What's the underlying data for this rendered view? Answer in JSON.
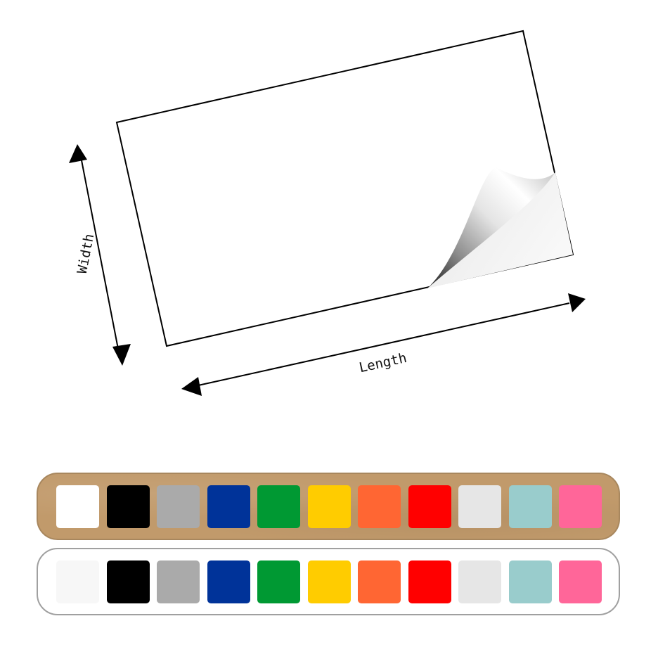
{
  "diagram": {
    "width_label": "Width",
    "length_label": "Length"
  },
  "swatch_bars": [
    {
      "id": "kraft",
      "background": "#c19a6b",
      "colors": [
        "#ffffff",
        "#000000",
        "#aaaaaa",
        "#003399",
        "#009933",
        "#ffcc00",
        "#ff6633",
        "#ff0000",
        "#e6e6e6",
        "#99cccc",
        "#ff6699"
      ]
    },
    {
      "id": "white",
      "background": "#ffffff",
      "colors": [
        "#f7f7f7",
        "#000000",
        "#aaaaaa",
        "#003399",
        "#009933",
        "#ffcc00",
        "#ff6633",
        "#ff0000",
        "#e6e6e6",
        "#99cccc",
        "#ff6699"
      ]
    }
  ]
}
